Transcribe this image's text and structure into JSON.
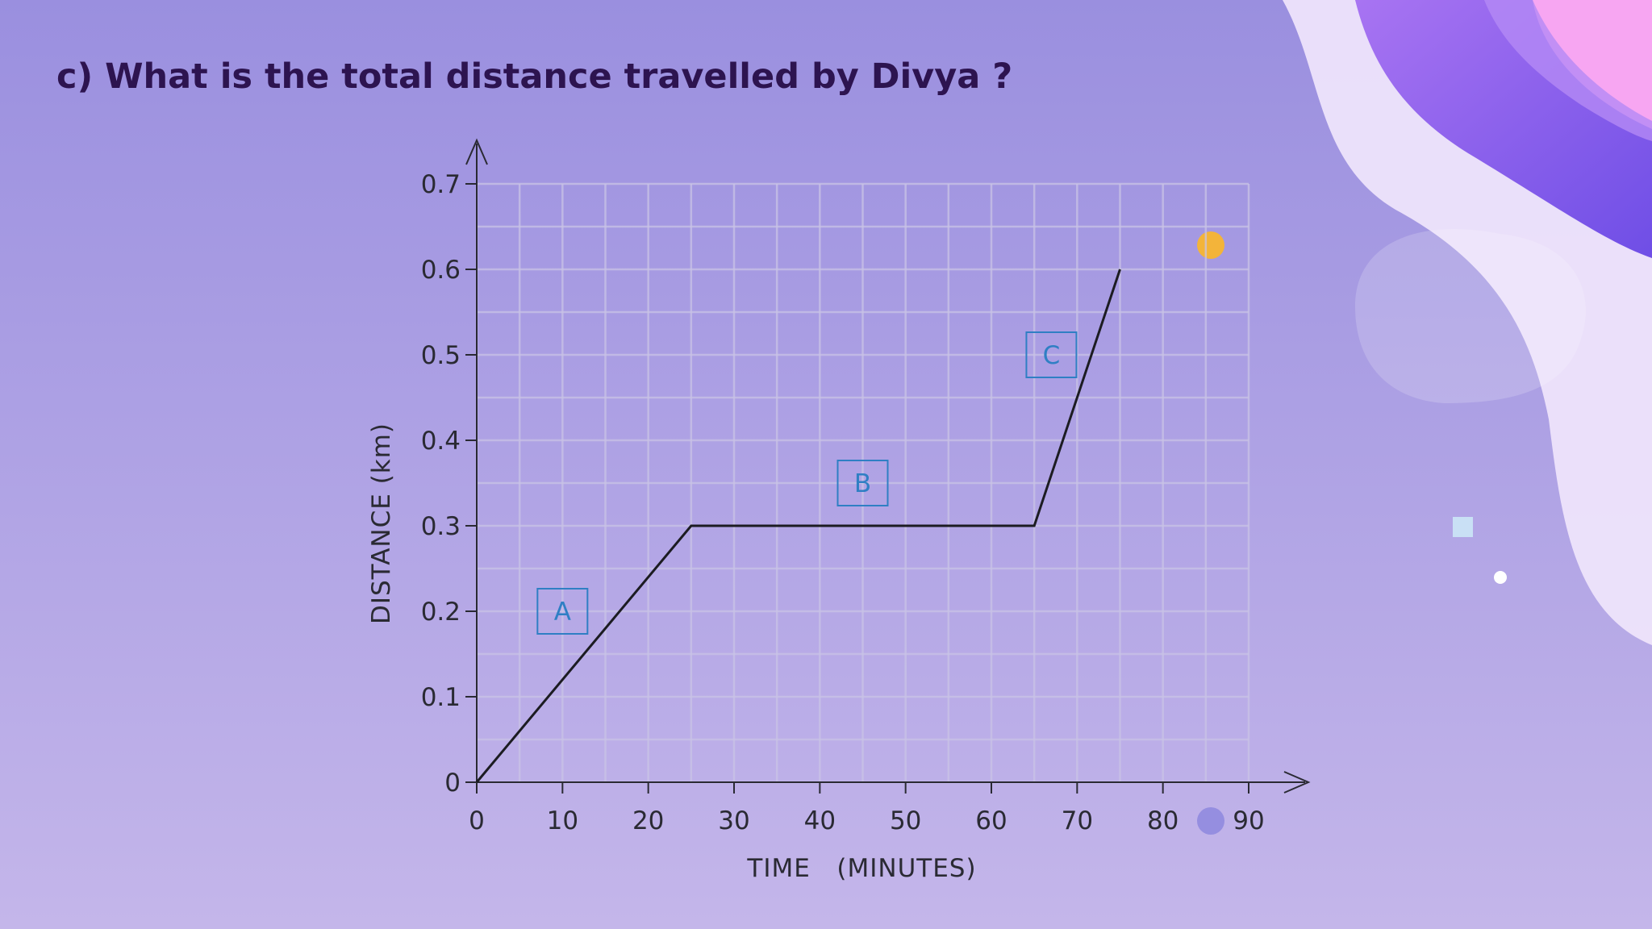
{
  "slide": {
    "question": "c) What is the total distance travelled by Divya ?",
    "colors": {
      "background_top": "#9a8fdf",
      "background_bottom": "#c4b6ea",
      "title_text": "#2d1450",
      "segment_label": "#2f7fc4",
      "accent_dot": "#f3b43a",
      "accent_blob_pink": "#f7a6f2",
      "accent_blob_violet": "#8b5cf0"
    }
  },
  "chart_data": {
    "type": "line",
    "title": "",
    "xlabel": "TIME   (MINUTES)",
    "ylabel": "DISTANCE (km)",
    "xlim": [
      0,
      90
    ],
    "ylim": [
      0,
      0.7
    ],
    "x_ticks": [
      "0",
      "10",
      "20",
      "30",
      "40",
      "50",
      "60",
      "70",
      "80",
      "90"
    ],
    "y_ticks": [
      "0",
      "0.1",
      "0.2",
      "0.3",
      "0.4",
      "0.5",
      "0.6",
      "0.7"
    ],
    "grid": true,
    "grid_step_x": 5,
    "grid_step_y": 0.05,
    "series": [
      {
        "points": [
          {
            "x": 0,
            "y": 0
          },
          {
            "x": 25,
            "y": 0.3
          },
          {
            "x": 65,
            "y": 0.3
          },
          {
            "x": 75,
            "y": 0.6
          }
        ]
      }
    ],
    "segment_labels": [
      {
        "text": "A",
        "x": 10,
        "y": 0.2
      },
      {
        "text": "B",
        "x": 45,
        "y": 0.35
      },
      {
        "text": "C",
        "x": 67,
        "y": 0.5
      }
    ]
  }
}
